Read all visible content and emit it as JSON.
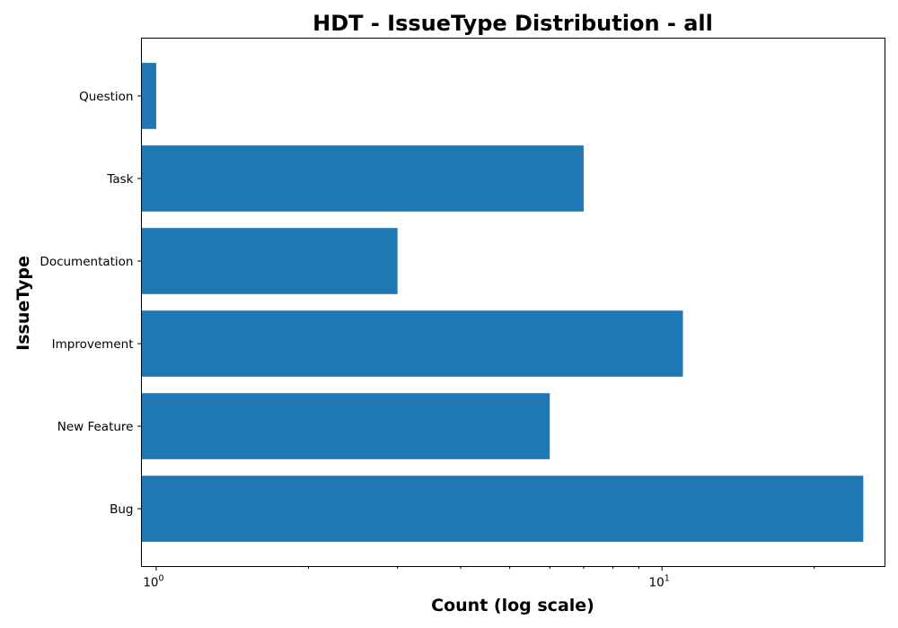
{
  "chart_data": {
    "type": "bar",
    "orientation": "horizontal",
    "title": "HDT - IssueType Distribution - all",
    "xlabel": "Count (log scale)",
    "ylabel": "IssueType",
    "xscale": "log",
    "xlim": [
      0.935,
      27.6
    ],
    "categories": [
      "Bug",
      "New Feature",
      "Improvement",
      "Documentation",
      "Task",
      "Question"
    ],
    "values": [
      25,
      6,
      11,
      3,
      7,
      1
    ],
    "major_ticks": [
      {
        "value": 1,
        "base": "10",
        "exp": "0"
      },
      {
        "value": 10,
        "base": "10",
        "exp": "1"
      }
    ],
    "minor_ticks": [
      2,
      3,
      4,
      5,
      6,
      7,
      8,
      9,
      20
    ],
    "bar_color": "#1f77b4",
    "grid": false,
    "legend": "none"
  }
}
